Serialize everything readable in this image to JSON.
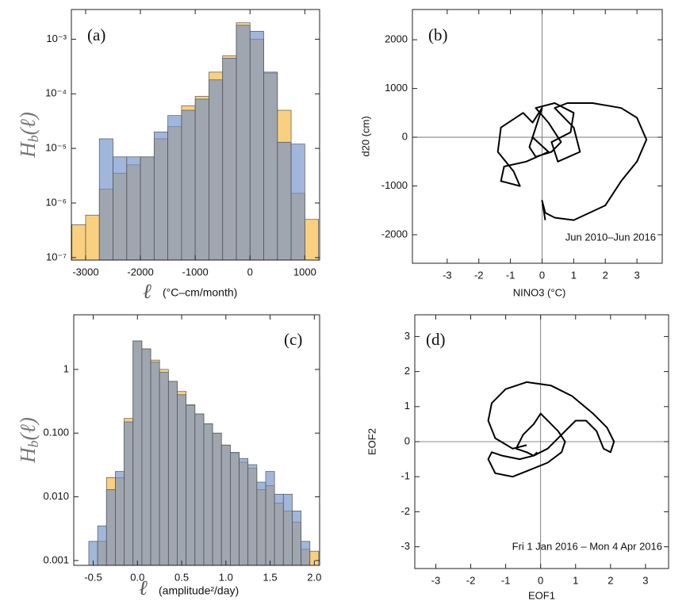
{
  "chart_data": [
    {
      "type": "histogram",
      "panel_label": "(a)",
      "y_label": "H",
      "y_label_sub": "b",
      "y_label_arg": "(ℓ)",
      "x_label": "ℓ",
      "x_label_unit": "(°C–cm/month)",
      "log_y": true,
      "bins": [
        -3250,
        -3000,
        -2750,
        -2500,
        -2250,
        -2000,
        -1750,
        -1500,
        -1250,
        -1000,
        -750,
        -500,
        -250,
        0,
        250,
        500,
        750,
        1000,
        1250
      ],
      "series": [
        {
          "color": "#f6b73c",
          "values": [
            4e-07,
            6e-07,
            1.8e-06,
            3.5e-06,
            5e-06,
            7e-06,
            1.5e-05,
            2.5e-05,
            6e-05,
            9e-05,
            0.00025,
            0.0005,
            0.002,
            0.001,
            0.00024,
            5e-05,
            1.5e-06,
            5e-07
          ]
        },
        {
          "color": "#6f8fc8",
          "values": [
            null,
            null,
            1.5e-05,
            7e-06,
            7e-06,
            7e-06,
            2e-05,
            4e-05,
            5e-05,
            8e-05,
            0.00018,
            0.00045,
            0.0018,
            0.0014,
            0.00025,
            1.3e-05,
            1.2e-05,
            null
          ]
        }
      ],
      "xlim": [
        -3260,
        1270
      ],
      "xticks": [
        -3000,
        -2000,
        -1000,
        0,
        1000
      ],
      "ylim": [
        9e-08,
        0.0035
      ],
      "yticks": [
        {
          "value": 1e-07,
          "label": "10⁻⁷"
        },
        {
          "value": 1e-06,
          "label": "10⁻⁶"
        },
        {
          "value": 1e-05,
          "label": "10⁻⁵"
        },
        {
          "value": 0.0001,
          "label": "10⁻⁴"
        },
        {
          "value": 0.001,
          "label": "10⁻³"
        }
      ]
    },
    {
      "type": "line",
      "panel_label": "(b)",
      "x_label": "NINO3 (°C)",
      "y_label": "d20 (cm)",
      "annotation": "Jun 2010–Jun 2016",
      "axes_at_origin": true,
      "color": "#000000",
      "x": [
        -0.3,
        0.2,
        -0.5,
        -1.2,
        -1.3,
        -0.7,
        -0.9,
        -1.4,
        -1.3,
        -0.6,
        -0.3,
        0.0,
        -0.4,
        -0.2,
        0.3,
        0.6,
        0.2,
        -0.2,
        0.4,
        1.0,
        0.9,
        0.3,
        0.5,
        1.2,
        1.0,
        0.4,
        0.8,
        1.6,
        2.5,
        3.0,
        3.2,
        3.3,
        3.0,
        2.5,
        2.0,
        1.0,
        0.4,
        0.1,
        0.0,
        0.1
      ],
      "values": [
        0,
        -300,
        -500,
        -600,
        -900,
        -1000,
        -700,
        -300,
        200,
        500,
        300,
        600,
        -200,
        -400,
        -300,
        -100,
        300,
        600,
        700,
        500,
        100,
        -100,
        -500,
        -300,
        200,
        600,
        700,
        700,
        600,
        400,
        100,
        -50,
        -500,
        -900,
        -1400,
        -1700,
        -1650,
        -1550,
        -1300,
        -1700
      ],
      "xlim": [
        -4.1,
        3.8
      ],
      "xticks": [
        -3,
        -2,
        -1,
        0,
        1,
        2,
        3
      ],
      "ylim": [
        -2585,
        2620
      ],
      "yticks": [
        -2000,
        -1000,
        0,
        1000,
        2000
      ]
    },
    {
      "type": "histogram",
      "panel_label": "(c)",
      "y_label": "H",
      "y_label_sub": "b",
      "y_label_arg": "(ℓ)",
      "x_label": "ℓ",
      "x_label_unit": "(amplitude²/day)",
      "log_y": true,
      "bins": [
        -0.55,
        -0.45,
        -0.35,
        -0.25,
        -0.15,
        -0.05,
        0.05,
        0.15,
        0.25,
        0.35,
        0.45,
        0.55,
        0.65,
        0.75,
        0.85,
        0.95,
        1.05,
        1.15,
        1.25,
        1.35,
        1.45,
        1.55,
        1.65,
        1.75,
        1.85,
        1.95,
        2.05
      ],
      "series": [
        {
          "color": "#f6b73c",
          "values": [
            null,
            0.002,
            0.02,
            0.02,
            0.17,
            2.8,
            2.1,
            1.4,
            1.0,
            0.65,
            0.45,
            0.27,
            0.2,
            0.14,
            0.1,
            0.065,
            0.048,
            0.035,
            0.028,
            0.013,
            0.015,
            0.008,
            0.006,
            0.004,
            0.0015,
            0.0014
          ]
        },
        {
          "color": "#6f8fc8",
          "values": [
            0.002,
            0.0035,
            0.013,
            0.025,
            0.15,
            2.8,
            2.1,
            1.3,
            0.9,
            0.65,
            0.4,
            0.28,
            0.2,
            0.14,
            0.1,
            0.065,
            0.05,
            0.04,
            0.032,
            0.017,
            0.025,
            0.011,
            0.011,
            0.006,
            0.002,
            null
          ]
        }
      ],
      "xlim": [
        -0.72,
        2.06
      ],
      "xticks": [
        -0.5,
        {
          "value": 0,
          "label": "0.0"
        },
        0.5,
        {
          "value": 1,
          "label": "1.0"
        },
        1.5,
        {
          "value": 2,
          "label": "2.0"
        }
      ],
      "ylim": [
        0.00084,
        7.2
      ],
      "yticks": [
        0.001,
        {
          "value": 0.01,
          "label": "0.010"
        },
        {
          "value": 0.1,
          "label": "0.100"
        },
        1
      ]
    },
    {
      "type": "line",
      "panel_label": "(d)",
      "x_label": "EOF1",
      "y_label": "EOF2",
      "annotation": "Fri 1 Jan 2016 – Mon 4 Apr 2016",
      "axes_at_origin": true,
      "color": "#000000",
      "x": [
        -0.4,
        -0.8,
        -1.3,
        -1.5,
        -1.4,
        -1.0,
        -0.4,
        0.3,
        0.9,
        1.5,
        1.9,
        2.1,
        2.0,
        1.8,
        1.6,
        1.3,
        1.0,
        0.6,
        0.2,
        -0.2,
        -0.6,
        -1.1,
        -1.4,
        -1.5,
        -1.3,
        -0.8,
        -0.3,
        0.2,
        0.6,
        0.7,
        0.5,
        0.0,
        -0.2,
        -0.5,
        -0.7,
        -0.4,
        -0.2,
        -0.1
      ],
      "values": [
        -0.1,
        -0.2,
        0.1,
        0.6,
        1.1,
        1.5,
        1.7,
        1.6,
        1.3,
        0.8,
        0.4,
        0.0,
        -0.3,
        -0.2,
        0.3,
        0.6,
        0.6,
        0.2,
        -0.2,
        -0.4,
        -0.5,
        -0.4,
        -0.3,
        -0.5,
        -0.9,
        -1.0,
        -0.8,
        -0.6,
        -0.3,
        0.0,
        0.3,
        0.8,
        0.5,
        0.2,
        -0.2,
        -0.3,
        -0.4,
        -0.3
      ],
      "xlim": [
        -3.6,
        3.66
      ],
      "xticks": [
        -3,
        -2,
        -1,
        0,
        1,
        2,
        3
      ],
      "ylim": [
        -3.62,
        3.62
      ],
      "yticks": [
        -3,
        -2,
        -1,
        0,
        1,
        2,
        3
      ]
    }
  ]
}
